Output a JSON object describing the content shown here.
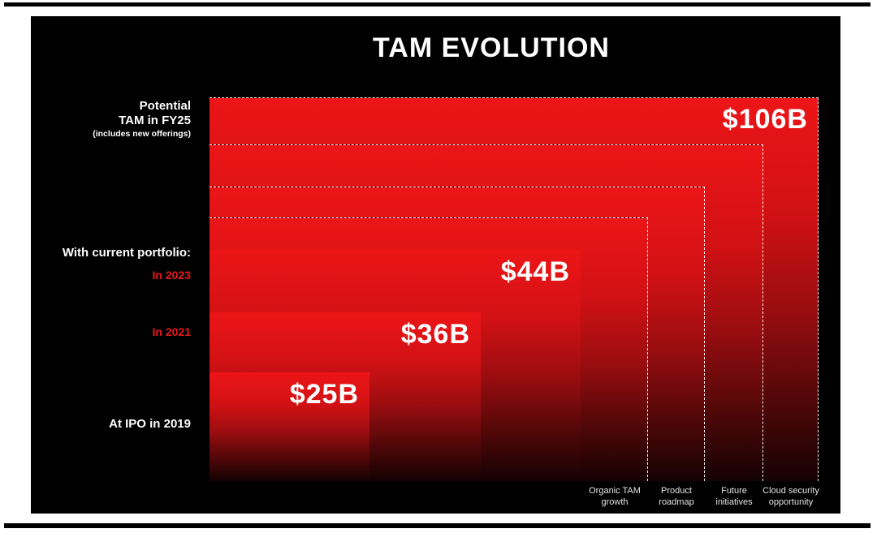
{
  "title": "TAM EVOLUTION",
  "colors": {
    "slide_background": "#000000",
    "bar_red_top": "#ec1517",
    "bar_red_bottom": "#150203",
    "accent_red_text": "#ea171a",
    "dashed_border": "#ffffff"
  },
  "left_labels": {
    "potential_line1": "Potential",
    "potential_line2": "TAM in FY25",
    "potential_line3": "(includes new offerings)",
    "portfolio": "With current portfolio:",
    "in2023": "In 2023",
    "in2021": "In 2021",
    "ipo": "At IPO in 2019"
  },
  "values": {
    "fy25": "$106B",
    "y2023": "$44B",
    "y2021": "$36B",
    "ipo2019": "$25B"
  },
  "bottom_labels": [
    {
      "line1": "Organic TAM",
      "line2": "growth"
    },
    {
      "line1": "Product",
      "line2": "roadmap"
    },
    {
      "line1": "Future",
      "line2": "initiatives"
    },
    {
      "line1": "Cloud security",
      "line2": "opportunity"
    }
  ],
  "chart_data": {
    "type": "area",
    "title": "TAM EVOLUTION",
    "unit": "USD billions",
    "description": "Nested bottom-left-anchored rectangles showing total addressable market growth; solid rectangles are realized TAM, dashed rectangles are potential future TAM increments.",
    "series": [
      {
        "name": "At IPO in 2019",
        "value": 25,
        "value_label": "$25B",
        "style": "solid"
      },
      {
        "name": "In 2021",
        "value": 36,
        "value_label": "$36B",
        "style": "solid"
      },
      {
        "name": "In 2023",
        "value": 44,
        "value_label": "$44B",
        "style": "solid"
      },
      {
        "name": "Potential TAM in FY25 (includes new offerings)",
        "value": 106,
        "value_label": "$106B",
        "style": "dashed"
      }
    ],
    "growth_drivers": [
      "Organic TAM growth",
      "Product roadmap",
      "Future initiatives",
      "Cloud security opportunity"
    ],
    "legend_position": "none",
    "grid": false
  }
}
